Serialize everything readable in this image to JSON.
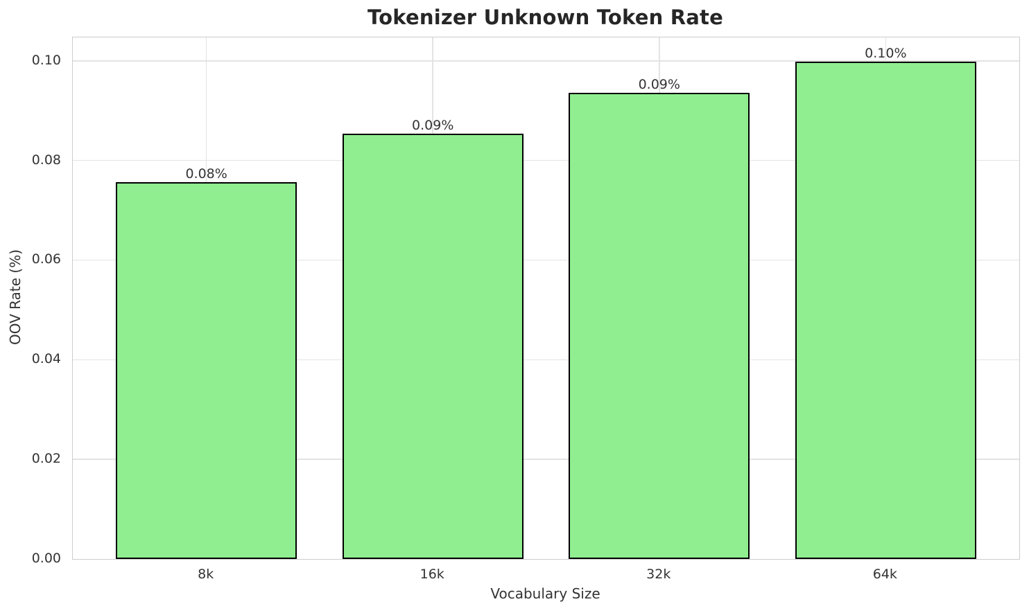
{
  "chart_data": {
    "type": "bar",
    "title": "Tokenizer Unknown Token Rate",
    "xlabel": "Vocabulary Size",
    "ylabel": "OOV Rate (%)",
    "categories": [
      "8k",
      "16k",
      "32k",
      "64k"
    ],
    "values": [
      0.0756,
      0.0854,
      0.0936,
      0.0999
    ],
    "bar_labels": [
      "0.08%",
      "0.09%",
      "0.09%",
      "0.10%"
    ],
    "ytick_values": [
      0.0,
      0.02,
      0.04,
      0.06,
      0.08,
      0.1
    ],
    "ytick_labels": [
      "0.00",
      "0.02",
      "0.04",
      "0.06",
      "0.08",
      "0.10"
    ],
    "ylim": [
      0,
      0.1047
    ],
    "grid": true,
    "legend": null,
    "bar_color": "#90ee90",
    "bar_edge_color": "#000000",
    "background_color": "#ffffff",
    "grid_color": "#e3e3e3",
    "spine_color": "#cccccc",
    "text_color": "#333333",
    "title_color": "#262626"
  }
}
